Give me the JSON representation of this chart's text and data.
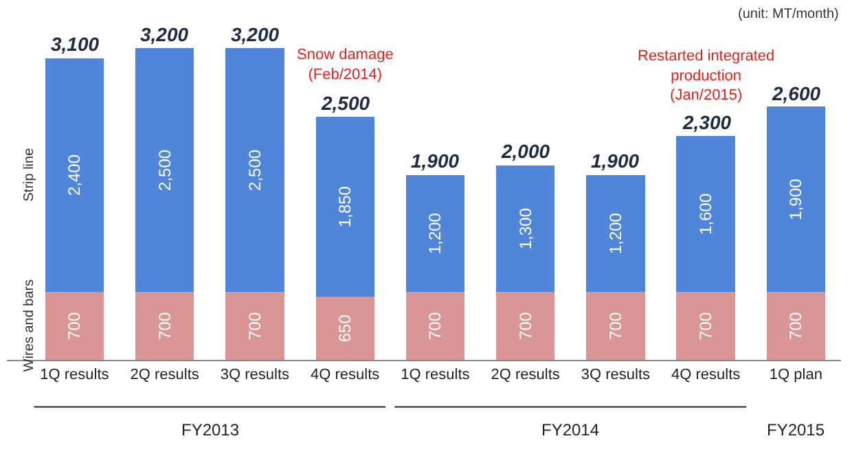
{
  "chart_data": {
    "type": "bar",
    "stacked": true,
    "categories": [
      "1Q results",
      "2Q results",
      "3Q results",
      "4Q results",
      "1Q results",
      "2Q results",
      "3Q results",
      "4Q results",
      "1Q plan"
    ],
    "series": [
      {
        "name": "Wires and bars",
        "color": "#d99694",
        "values": [
          700,
          700,
          700,
          650,
          700,
          700,
          700,
          700,
          700
        ],
        "value_labels": [
          "700",
          "700",
          "700",
          "650",
          "700",
          "700",
          "700",
          "700",
          "700"
        ]
      },
      {
        "name": "Strip line",
        "color": "#4f86d9",
        "values": [
          2400,
          2500,
          2500,
          1850,
          1200,
          1300,
          1200,
          1600,
          1900
        ],
        "value_labels": [
          "2,400",
          "2,500",
          "2,500",
          "1,850",
          "1,200",
          "1,300",
          "1,200",
          "1,600",
          "1,900"
        ]
      }
    ],
    "totals": [
      "3,100",
      "3,200",
      "3,200",
      "2,500",
      "1,900",
      "2,000",
      "1,900",
      "2,300",
      "2,600"
    ],
    "annotations": [
      "(unit: MT/month)",
      "Snow damage\n(Feb/2014)",
      "Restarted integrated\nproduction\n(Jan/2015)",
      "FY2013",
      "FY2014",
      "FY2015"
    ],
    "tick_labels": "x",
    "legend": false
  }
}
